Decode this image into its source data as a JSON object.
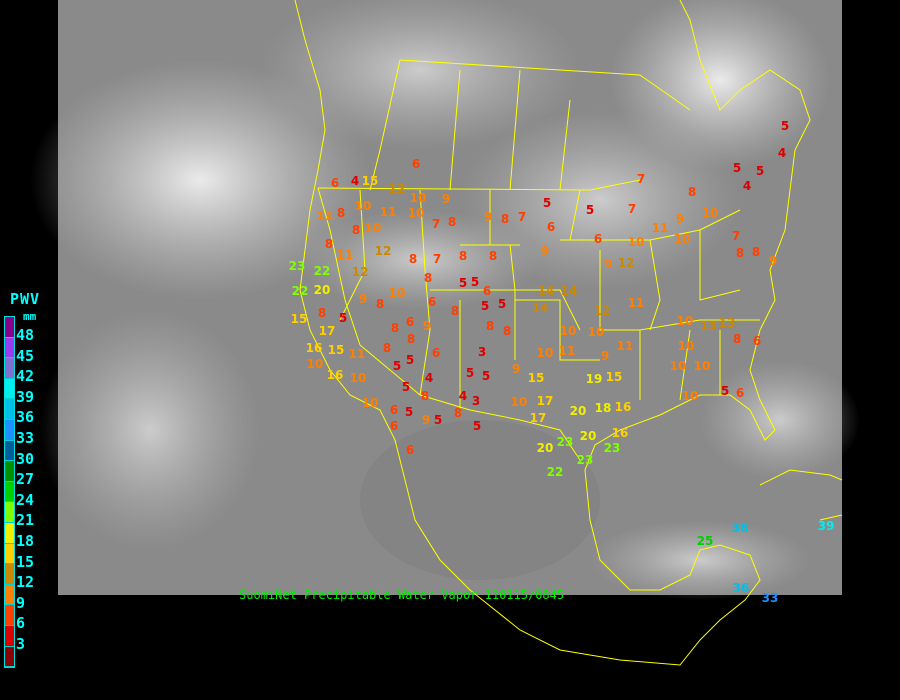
{
  "legend": {
    "title": "PWV",
    "unit": "mm",
    "ticks": [
      "48",
      "45",
      "42",
      "39",
      "36",
      "33",
      "30",
      "27",
      "24",
      "21",
      "18",
      "15",
      "12",
      "9",
      "6",
      "3"
    ],
    "colors": [
      "#8b008b",
      "#9a3cf0",
      "#8070d0",
      "#00eeee",
      "#00c0e8",
      "#1e90ff",
      "#005f9a",
      "#009000",
      "#00d000",
      "#80ff00",
      "#f0f000",
      "#ffd000",
      "#cc8800",
      "#ff8000",
      "#ff4000",
      "#dd0000",
      "#8b0000"
    ]
  },
  "caption": "SuomiNet Precipitable Water Vapor 110115/0845",
  "stations": [
    5,
    4,
    5,
    4,
    5,
    7,
    6,
    12,
    9,
    10,
    10,
    7,
    8,
    9,
    8,
    7,
    5,
    6,
    5,
    9,
    6,
    7,
    8,
    9,
    10,
    7,
    8,
    8,
    9,
    9,
    12,
    10,
    11,
    10,
    14,
    14,
    11,
    12,
    10,
    10,
    9,
    10,
    11,
    11,
    10,
    13,
    13,
    8,
    6,
    10,
    10,
    10,
    5,
    6,
    10,
    15,
    19,
    15,
    10,
    17,
    17,
    20,
    18,
    16,
    20,
    16,
    20,
    23,
    23,
    22,
    23,
    23,
    22,
    22,
    20,
    6,
    4,
    15,
    11,
    8,
    8,
    10,
    11,
    10,
    8,
    11,
    12,
    12,
    8,
    7,
    8,
    8,
    5,
    5,
    6,
    14,
    8,
    6,
    10,
    8,
    9,
    8,
    5,
    17,
    15,
    15,
    16,
    16,
    10,
    11,
    8,
    5,
    5,
    6,
    3,
    4,
    5,
    5,
    4,
    3,
    8,
    8,
    5,
    5,
    6,
    6,
    9,
    5,
    5,
    6,
    10,
    10,
    8,
    6,
    8,
    9,
    8,
    5,
    5,
    8,
    8,
    9,
    36,
    39,
    33,
    25,
    36
  ]
}
